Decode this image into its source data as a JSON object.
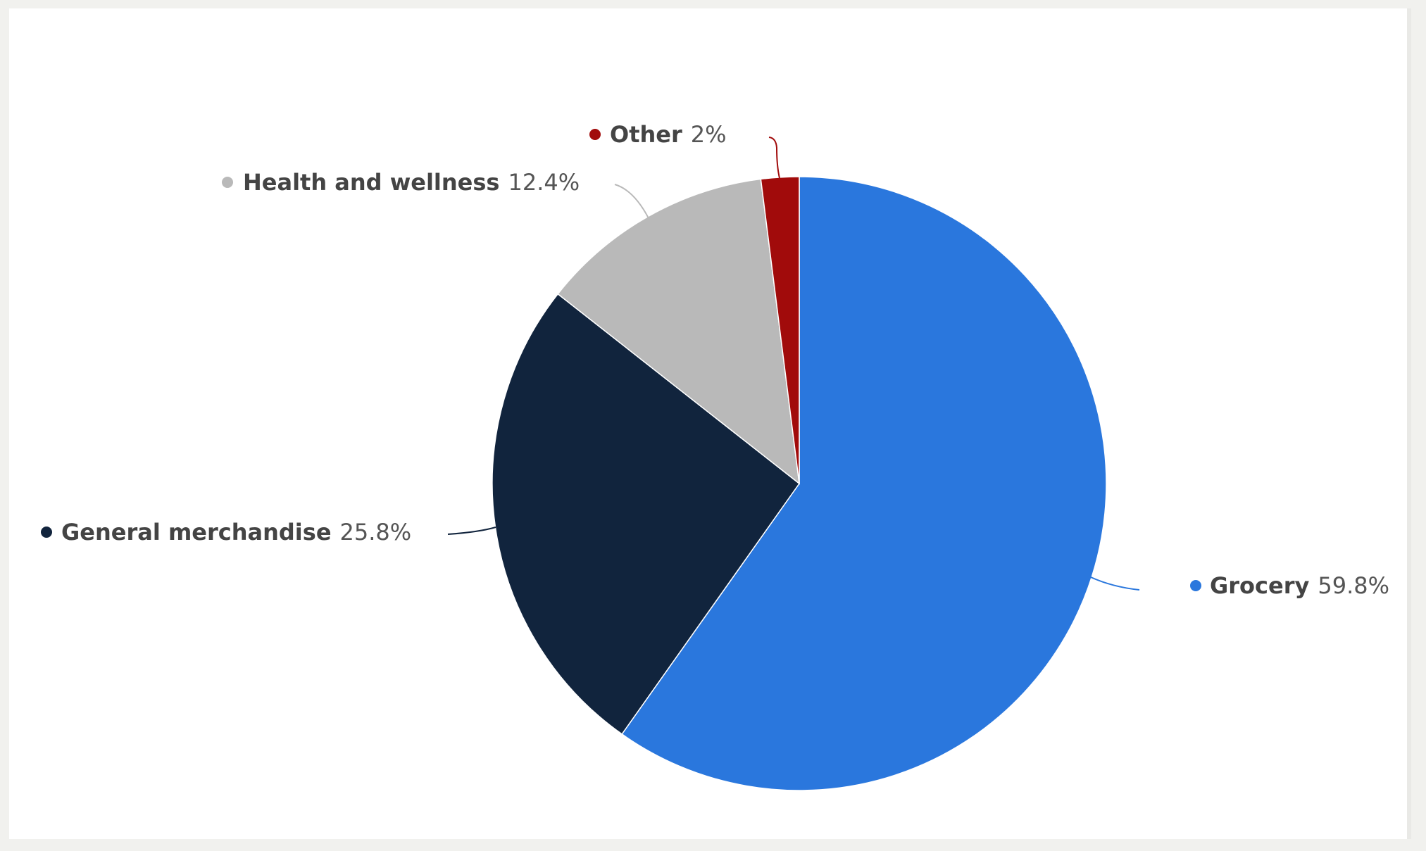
{
  "chart_data": {
    "type": "pie",
    "slices": [
      {
        "label": "Grocery",
        "value": 59.8,
        "value_text": "59.8%",
        "color": "#2a77dd"
      },
      {
        "label": "General merchandise",
        "value": 25.8,
        "value_text": "25.8%",
        "color": "#11243d"
      },
      {
        "label": "Health and wellness",
        "value": 12.4,
        "value_text": "12.4%",
        "color": "#b9b9b9"
      },
      {
        "label": "Other",
        "value": 2,
        "value_text": "2%",
        "color": "#a10b0b"
      }
    ],
    "legend": "none",
    "data_labels": "outside with connector lines"
  }
}
